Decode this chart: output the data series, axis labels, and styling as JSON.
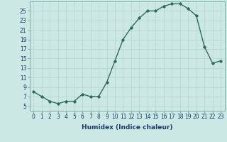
{
  "x": [
    0,
    1,
    2,
    3,
    4,
    5,
    6,
    7,
    8,
    9,
    10,
    11,
    12,
    13,
    14,
    15,
    16,
    17,
    18,
    19,
    20,
    21,
    22,
    23
  ],
  "y": [
    8,
    7,
    6,
    5.5,
    6,
    6,
    7.5,
    7,
    7,
    10,
    14.5,
    19,
    21.5,
    23.5,
    25,
    25,
    26,
    26.5,
    26.5,
    25.5,
    24,
    17.5,
    14,
    14.5
  ],
  "line_color": "#2e6b5e",
  "bg_color": "#cce8e4",
  "grid_color": "#b8d8d4",
  "xlabel": "Humidex (Indice chaleur)",
  "xlim": [
    -0.5,
    23.5
  ],
  "ylim": [
    4,
    27
  ],
  "yticks": [
    5,
    7,
    9,
    11,
    13,
    15,
    17,
    19,
    21,
    23,
    25
  ],
  "xtick_labels": [
    "0",
    "1",
    "2",
    "3",
    "4",
    "5",
    "6",
    "7",
    "8",
    "9",
    "10",
    "11",
    "12",
    "13",
    "14",
    "15",
    "16",
    "17",
    "18",
    "19",
    "20",
    "21",
    "22",
    "23"
  ],
  "marker": "D",
  "marker_size": 1.8,
  "line_width": 1.0,
  "label_fontsize": 6.5,
  "tick_fontsize": 5.5,
  "text_color": "#1a3a6e"
}
